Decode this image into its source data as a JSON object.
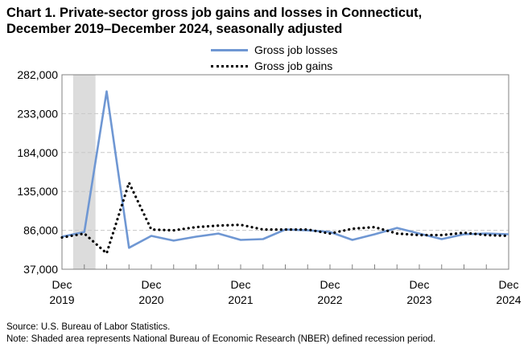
{
  "title_line1": "Chart 1. Private-sector gross job gains and losses in Connecticut,",
  "title_line2": "December 2019–December 2024, seasonally adjusted",
  "source": "Source: U.S. Bureau of Labor Statistics.",
  "note": "Note: Shaded area represents National Bureau of Economic Research (NBER) defined recession period.",
  "colors": {
    "losses": "#6f97d3",
    "gains": "#000000",
    "recession": "#dcdcdc",
    "grid": "#c8c8c8"
  },
  "chart_data": {
    "type": "line",
    "ylim": [
      37000,
      282000
    ],
    "yticks": [
      37000,
      86000,
      135000,
      184000,
      233000,
      282000
    ],
    "ytick_labels": [
      "37,000",
      "86,000",
      "135,000",
      "184,000",
      "233,000",
      "282,000"
    ],
    "x": [
      "Dec 2019",
      "Mar 2020",
      "Jun 2020",
      "Sep 2020",
      "Dec 2020",
      "Mar 2021",
      "Jun 2021",
      "Sep 2021",
      "Dec 2021",
      "Mar 2022",
      "Jun 2022",
      "Sep 2022",
      "Dec 2022",
      "Mar 2023",
      "Jun 2023",
      "Sep 2023",
      "Dec 2023",
      "Mar 2024",
      "Jun 2024",
      "Sep 2024",
      "Dec 2024"
    ],
    "xtick_labels": [
      {
        "index": 0,
        "line1": "Dec",
        "line2": "2019"
      },
      {
        "index": 4,
        "line1": "Dec",
        "line2": "2020"
      },
      {
        "index": 8,
        "line1": "Dec",
        "line2": "2021"
      },
      {
        "index": 12,
        "line1": "Dec",
        "line2": "2022"
      },
      {
        "index": 16,
        "line1": "Dec",
        "line2": "2023"
      },
      {
        "index": 20,
        "line1": "Dec",
        "line2": "2024"
      }
    ],
    "recession": {
      "start_index": 0.5,
      "end_index": 1.5
    },
    "series": [
      {
        "name": "Gross job losses",
        "style": "solid",
        "values": [
          78000,
          84000,
          261000,
          64000,
          79000,
          73000,
          78000,
          82000,
          74000,
          75000,
          87000,
          86000,
          84000,
          74000,
          81000,
          89000,
          82000,
          75000,
          81000,
          82000,
          81000
        ]
      },
      {
        "name": "Gross job gains",
        "style": "dotted",
        "values": [
          77000,
          82000,
          57000,
          146000,
          87000,
          86000,
          90000,
          92000,
          93000,
          87000,
          87000,
          87000,
          82000,
          88000,
          90000,
          82000,
          80000,
          80000,
          83000,
          80000,
          79000
        ]
      }
    ]
  }
}
